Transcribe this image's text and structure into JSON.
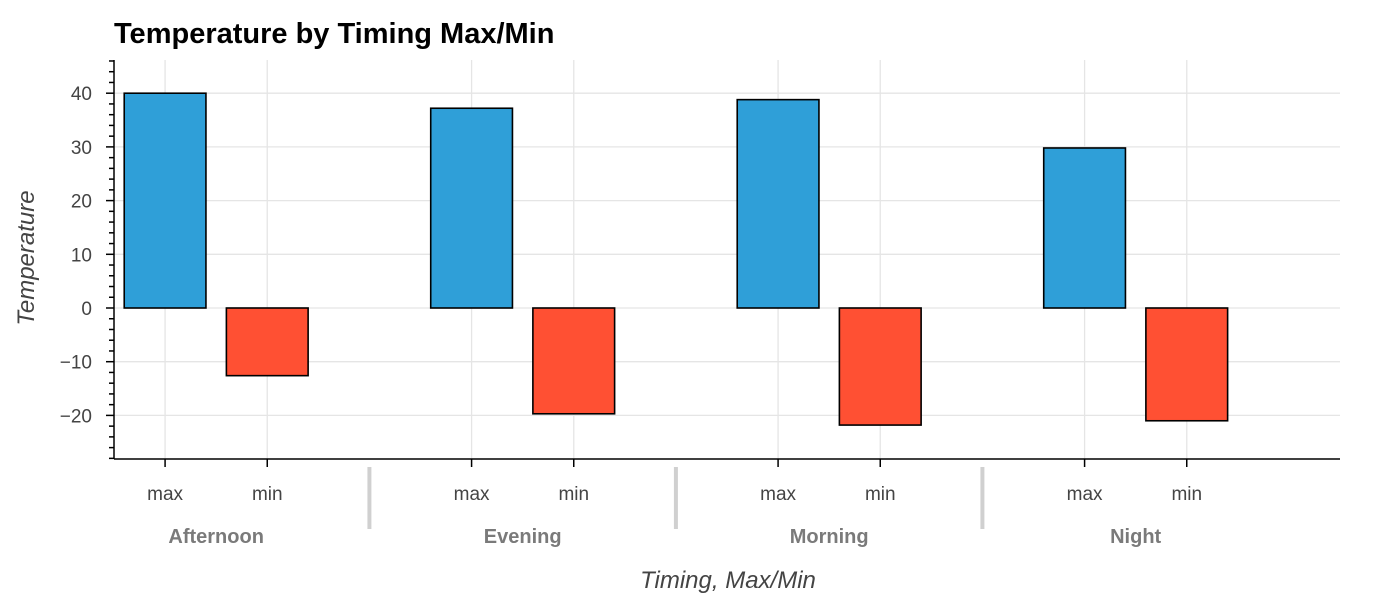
{
  "chart_data": {
    "type": "bar",
    "title": "Temperature by Timing Max/Min",
    "xlabel": "Timing, Max/Min",
    "ylabel": "Temperature",
    "groups": [
      "Afternoon",
      "Evening",
      "Morning",
      "Night"
    ],
    "subcategories": [
      "max",
      "min"
    ],
    "series": [
      {
        "name": "max",
        "values": [
          40,
          37.2,
          38.8,
          29.8
        ],
        "color": "#2f9fd8"
      },
      {
        "name": "min",
        "values": [
          -12.6,
          -19.7,
          -21.8,
          -21.0
        ],
        "color": "#ff5033"
      }
    ],
    "ylim": [
      -28,
      46
    ],
    "yticks": [
      -20,
      -10,
      0,
      10,
      20,
      30,
      40
    ],
    "ytick_labels": [
      "−20",
      "−10",
      "0",
      "10",
      "20",
      "30",
      "40"
    ],
    "grid": true,
    "legend": "none"
  }
}
